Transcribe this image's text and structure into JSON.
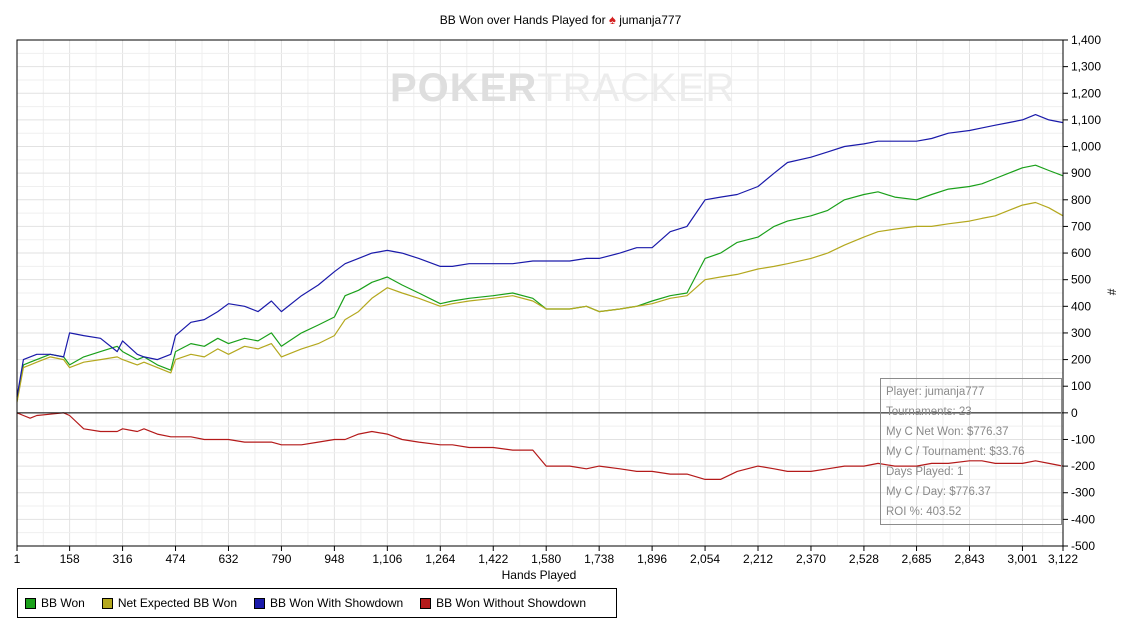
{
  "chart_data": {
    "type": "line",
    "title_prefix": "BB Won over Hands Played for",
    "player": "jumanja777",
    "xlabel": "Hands Played",
    "ylabel": "#",
    "xlim": [
      1,
      3122
    ],
    "ylim": [
      -500,
      1400
    ],
    "x_ticks": [
      1,
      158,
      316,
      474,
      632,
      790,
      948,
      1106,
      1264,
      1422,
      1580,
      1738,
      1896,
      2054,
      2212,
      2370,
      2528,
      2685,
      2843,
      3001,
      3122
    ],
    "x_tick_labels": [
      "1",
      "158",
      "316",
      "474",
      "632",
      "790",
      "948",
      "1,106",
      "1,264",
      "1,422",
      "1,580",
      "1,738",
      "1,896",
      "2,054",
      "2,212",
      "2,370",
      "2,528",
      "2,685",
      "2,843",
      "3,001",
      "3,122"
    ],
    "y_ticks": [
      -500,
      -400,
      -300,
      -200,
      -100,
      0,
      100,
      200,
      300,
      400,
      500,
      600,
      700,
      800,
      900,
      1000,
      1100,
      1200,
      1300,
      1400
    ],
    "y_tick_labels": [
      "-500",
      "-400",
      "-300",
      "-200",
      "-100",
      "0",
      "100",
      "200",
      "300",
      "400",
      "500",
      "600",
      "700",
      "800",
      "900",
      "1,000",
      "1,100",
      "1,200",
      "1,300",
      "1,400"
    ],
    "grid": true,
    "legend_position": "bottom-left",
    "series": [
      {
        "name": "BB Won",
        "color": "#1aa01a",
        "x": [
          1,
          20,
          40,
          60,
          100,
          140,
          158,
          200,
          250,
          300,
          316,
          360,
          380,
          420,
          460,
          474,
          520,
          560,
          600,
          632,
          680,
          720,
          760,
          790,
          850,
          900,
          948,
          980,
          1020,
          1060,
          1106,
          1150,
          1200,
          1264,
          1300,
          1350,
          1422,
          1480,
          1540,
          1580,
          1650,
          1700,
          1738,
          1800,
          1850,
          1896,
          1950,
          2000,
          2054,
          2100,
          2150,
          2212,
          2260,
          2300,
          2370,
          2420,
          2470,
          2528,
          2570,
          2620,
          2685,
          2730,
          2780,
          2843,
          2880,
          2920,
          2960,
          3001,
          3040,
          3080,
          3122
        ],
        "y": [
          50,
          180,
          190,
          200,
          220,
          210,
          180,
          210,
          230,
          250,
          230,
          200,
          210,
          180,
          160,
          230,
          260,
          250,
          280,
          260,
          280,
          270,
          300,
          250,
          300,
          330,
          360,
          440,
          460,
          490,
          510,
          480,
          450,
          410,
          420,
          430,
          440,
          450,
          430,
          390,
          390,
          400,
          380,
          390,
          400,
          420,
          440,
          450,
          580,
          600,
          640,
          660,
          700,
          720,
          740,
          760,
          800,
          820,
          830,
          810,
          800,
          820,
          840,
          850,
          860,
          880,
          900,
          920,
          930,
          910,
          890
        ]
      },
      {
        "name": "Net Expected BB Won",
        "color": "#b4a81e",
        "x": [
          1,
          20,
          40,
          60,
          100,
          140,
          158,
          200,
          250,
          300,
          316,
          360,
          380,
          420,
          460,
          474,
          520,
          560,
          600,
          632,
          680,
          720,
          760,
          790,
          850,
          900,
          948,
          980,
          1020,
          1060,
          1106,
          1150,
          1200,
          1264,
          1300,
          1350,
          1422,
          1480,
          1540,
          1580,
          1650,
          1700,
          1738,
          1800,
          1850,
          1896,
          1950,
          2000,
          2054,
          2100,
          2150,
          2212,
          2260,
          2300,
          2370,
          2420,
          2470,
          2528,
          2570,
          2620,
          2685,
          2730,
          2780,
          2843,
          2880,
          2920,
          2960,
          3001,
          3040,
          3080,
          3122
        ],
        "y": [
          40,
          170,
          180,
          190,
          210,
          200,
          170,
          190,
          200,
          210,
          200,
          180,
          190,
          170,
          150,
          200,
          220,
          210,
          240,
          220,
          250,
          240,
          260,
          210,
          240,
          260,
          290,
          350,
          380,
          430,
          470,
          450,
          430,
          400,
          410,
          420,
          430,
          440,
          420,
          390,
          390,
          400,
          380,
          390,
          400,
          410,
          430,
          440,
          500,
          510,
          520,
          540,
          550,
          560,
          580,
          600,
          630,
          660,
          680,
          690,
          700,
          700,
          710,
          720,
          730,
          740,
          760,
          780,
          790,
          770,
          740
        ]
      },
      {
        "name": "BB Won With Showdown",
        "color": "#1a1aaa",
        "x": [
          1,
          20,
          40,
          60,
          100,
          140,
          158,
          200,
          250,
          300,
          316,
          360,
          380,
          420,
          460,
          474,
          520,
          560,
          600,
          632,
          680,
          720,
          760,
          790,
          850,
          900,
          948,
          980,
          1020,
          1060,
          1106,
          1150,
          1200,
          1264,
          1300,
          1350,
          1422,
          1480,
          1540,
          1580,
          1650,
          1700,
          1738,
          1800,
          1850,
          1896,
          1950,
          2000,
          2054,
          2100,
          2150,
          2212,
          2260,
          2300,
          2370,
          2420,
          2470,
          2528,
          2570,
          2620,
          2685,
          2730,
          2780,
          2843,
          2880,
          2920,
          2960,
          3001,
          3040,
          3080,
          3122
        ],
        "y": [
          60,
          200,
          210,
          220,
          220,
          210,
          300,
          290,
          280,
          230,
          270,
          220,
          210,
          200,
          220,
          290,
          340,
          350,
          380,
          410,
          400,
          380,
          420,
          380,
          440,
          480,
          530,
          560,
          580,
          600,
          610,
          600,
          580,
          550,
          550,
          560,
          560,
          560,
          570,
          570,
          570,
          580,
          580,
          600,
          620,
          620,
          680,
          700,
          800,
          810,
          820,
          850,
          900,
          940,
          960,
          980,
          1000,
          1010,
          1020,
          1020,
          1020,
          1030,
          1050,
          1060,
          1070,
          1080,
          1090,
          1100,
          1120,
          1100,
          1090
        ]
      },
      {
        "name": "BB Won Without Showdown",
        "color": "#b41a1a",
        "x": [
          1,
          20,
          40,
          60,
          100,
          140,
          158,
          200,
          250,
          300,
          316,
          360,
          380,
          420,
          460,
          474,
          520,
          560,
          600,
          632,
          680,
          720,
          760,
          790,
          850,
          900,
          948,
          980,
          1020,
          1060,
          1106,
          1150,
          1200,
          1264,
          1300,
          1350,
          1422,
          1480,
          1540,
          1580,
          1650,
          1700,
          1738,
          1800,
          1850,
          1896,
          1950,
          2000,
          2054,
          2100,
          2150,
          2212,
          2260,
          2300,
          2370,
          2420,
          2470,
          2528,
          2570,
          2620,
          2685,
          2730,
          2780,
          2843,
          2880,
          2920,
          2960,
          3001,
          3040,
          3080,
          3122
        ],
        "y": [
          0,
          -10,
          -20,
          -10,
          -5,
          0,
          -10,
          -60,
          -70,
          -70,
          -60,
          -70,
          -60,
          -80,
          -90,
          -90,
          -90,
          -100,
          -100,
          -100,
          -110,
          -110,
          -110,
          -120,
          -120,
          -110,
          -100,
          -100,
          -80,
          -70,
          -80,
          -100,
          -110,
          -120,
          -120,
          -130,
          -130,
          -140,
          -140,
          -200,
          -200,
          -210,
          -200,
          -210,
          -220,
          -220,
          -230,
          -230,
          -250,
          -250,
          -220,
          -200,
          -210,
          -220,
          -220,
          -210,
          -200,
          -200,
          -190,
          -200,
          -200,
          -190,
          -190,
          -180,
          -180,
          -190,
          -190,
          -190,
          -180,
          -190,
          -200
        ]
      }
    ]
  },
  "infobox": {
    "player": "Player: jumanja777",
    "tournaments": "Tournaments: 23",
    "net_won": "My C Net Won: $776.37",
    "per_tournament": "My C / Tournament: $33.76",
    "days_played": "Days Played: 1",
    "per_day": "My C / Day: $776.37",
    "roi": "ROI %: 403.52"
  },
  "watermark": {
    "bold": "POKER",
    "light": "TRACKER"
  },
  "legend": [
    {
      "label": "BB Won",
      "color": "#1aa01a"
    },
    {
      "label": "Net Expected BB Won",
      "color": "#b4a81e"
    },
    {
      "label": "BB Won With Showdown",
      "color": "#1a1aaa"
    },
    {
      "label": "BB Won Without Showdown",
      "color": "#b41a1a"
    }
  ]
}
